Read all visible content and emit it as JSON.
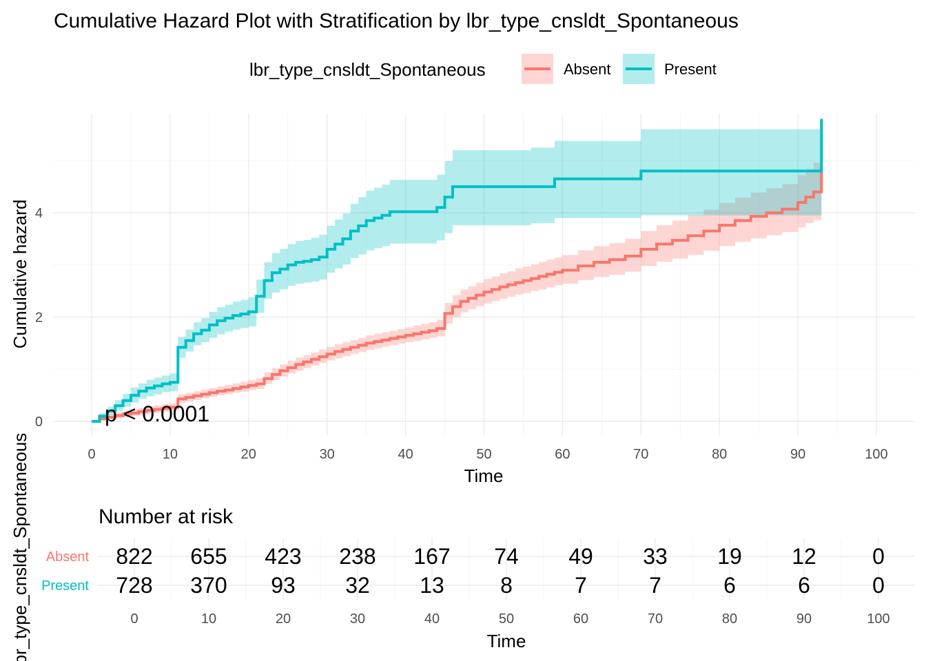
{
  "chart_data": [
    {
      "type": "line",
      "subtype": "step",
      "title": "Cumulative Hazard Plot with Stratification by lbr_type_cnsldt_Spontaneous",
      "xlabel": "Time",
      "ylabel": "Cumulative hazard",
      "xlim": [
        0,
        100
      ],
      "ylim": [
        0,
        5.8
      ],
      "x_ticks": [
        0,
        10,
        20,
        30,
        40,
        50,
        60,
        70,
        80,
        90,
        100
      ],
      "y_ticks": [
        0,
        2,
        4
      ],
      "grid": true,
      "annotation": "p < 0.0001",
      "legend": {
        "title": "lbr_type_cnsldt_Spontaneous",
        "position": "top",
        "entries": [
          "Absent",
          "Present"
        ]
      },
      "series": [
        {
          "name": "Absent",
          "color": "#F8766D",
          "band_color": "#F8766D",
          "x": [
            0,
            1,
            2,
            3,
            4,
            5,
            6,
            7,
            8,
            9,
            10,
            11,
            12,
            13,
            14,
            15,
            16,
            17,
            18,
            19,
            20,
            21,
            22,
            23,
            24,
            25,
            26,
            27,
            28,
            29,
            30,
            31,
            32,
            33,
            34,
            35,
            36,
            37,
            38,
            39,
            40,
            41,
            42,
            43,
            44,
            45,
            46,
            47,
            48,
            49,
            50,
            51,
            52,
            53,
            54,
            55,
            56,
            57,
            58,
            59,
            60,
            62,
            64,
            66,
            68,
            70,
            72,
            74,
            76,
            78,
            80,
            82,
            84,
            86,
            88,
            90,
            91,
            92,
            93
          ],
          "y": [
            0,
            0.05,
            0.08,
            0.11,
            0.14,
            0.16,
            0.19,
            0.21,
            0.23,
            0.25,
            0.27,
            0.43,
            0.46,
            0.49,
            0.52,
            0.55,
            0.58,
            0.6,
            0.63,
            0.66,
            0.69,
            0.72,
            0.82,
            0.9,
            0.97,
            1.03,
            1.09,
            1.14,
            1.19,
            1.24,
            1.29,
            1.34,
            1.38,
            1.42,
            1.46,
            1.5,
            1.53,
            1.56,
            1.59,
            1.62,
            1.65,
            1.68,
            1.71,
            1.74,
            1.78,
            2.07,
            2.2,
            2.3,
            2.36,
            2.42,
            2.48,
            2.53,
            2.58,
            2.62,
            2.66,
            2.7,
            2.74,
            2.78,
            2.82,
            2.86,
            2.9,
            2.98,
            3.05,
            3.1,
            3.17,
            3.3,
            3.4,
            3.47,
            3.56,
            3.65,
            3.76,
            3.85,
            3.93,
            4.0,
            4.07,
            4.2,
            4.3,
            4.4,
            4.8
          ],
          "lower": [
            0,
            0.02,
            0.04,
            0.06,
            0.08,
            0.1,
            0.12,
            0.14,
            0.16,
            0.18,
            0.2,
            0.35,
            0.38,
            0.41,
            0.44,
            0.47,
            0.5,
            0.52,
            0.55,
            0.57,
            0.6,
            0.62,
            0.72,
            0.79,
            0.86,
            0.92,
            0.97,
            1.02,
            1.07,
            1.12,
            1.17,
            1.21,
            1.25,
            1.29,
            1.33,
            1.37,
            1.4,
            1.43,
            1.46,
            1.49,
            1.52,
            1.54,
            1.57,
            1.6,
            1.63,
            1.88,
            2.0,
            2.09,
            2.15,
            2.21,
            2.26,
            2.31,
            2.35,
            2.39,
            2.43,
            2.46,
            2.5,
            2.53,
            2.57,
            2.61,
            2.64,
            2.71,
            2.77,
            2.81,
            2.87,
            2.98,
            3.06,
            3.12,
            3.19,
            3.27,
            3.36,
            3.44,
            3.51,
            3.57,
            3.63,
            3.72,
            3.8,
            3.86,
            4.0
          ],
          "upper": [
            0,
            0.09,
            0.13,
            0.17,
            0.2,
            0.23,
            0.26,
            0.29,
            0.31,
            0.33,
            0.35,
            0.52,
            0.55,
            0.58,
            0.61,
            0.64,
            0.67,
            0.7,
            0.73,
            0.76,
            0.79,
            0.83,
            0.94,
            1.02,
            1.09,
            1.16,
            1.22,
            1.27,
            1.32,
            1.38,
            1.43,
            1.48,
            1.52,
            1.56,
            1.6,
            1.65,
            1.68,
            1.71,
            1.74,
            1.77,
            1.8,
            1.84,
            1.87,
            1.9,
            1.95,
            2.27,
            2.42,
            2.53,
            2.59,
            2.66,
            2.73,
            2.78,
            2.84,
            2.88,
            2.93,
            2.97,
            3.01,
            3.06,
            3.1,
            3.14,
            3.19,
            3.28,
            3.36,
            3.42,
            3.5,
            3.65,
            3.76,
            3.85,
            3.96,
            4.06,
            4.19,
            4.29,
            4.39,
            4.47,
            4.55,
            4.72,
            4.84,
            4.96,
            5.0
          ]
        },
        {
          "name": "Present",
          "color": "#00BFC4",
          "band_color": "#00BFC4",
          "x": [
            0,
            1,
            2,
            3,
            4,
            5,
            6,
            7,
            8,
            9,
            10,
            11,
            12,
            13,
            14,
            15,
            16,
            17,
            18,
            19,
            20,
            21,
            22,
            23,
            24,
            25,
            26,
            27,
            28,
            29,
            30,
            31,
            32,
            33,
            34,
            35,
            36,
            37,
            38,
            40,
            42,
            44,
            45,
            46,
            50,
            52,
            54,
            56,
            59,
            62,
            66,
            70,
            75,
            80,
            85,
            90,
            93
          ],
          "y": [
            0,
            0.1,
            0.2,
            0.3,
            0.4,
            0.5,
            0.58,
            0.64,
            0.68,
            0.72,
            0.75,
            1.42,
            1.55,
            1.68,
            1.75,
            1.85,
            1.93,
            1.98,
            2.03,
            2.06,
            2.1,
            2.4,
            2.7,
            2.85,
            2.92,
            3.0,
            3.05,
            3.07,
            3.1,
            3.15,
            3.3,
            3.4,
            3.5,
            3.65,
            3.75,
            3.85,
            3.9,
            3.95,
            4.02,
            4.02,
            4.02,
            4.1,
            4.3,
            4.5,
            4.5,
            4.5,
            4.5,
            4.5,
            4.65,
            4.65,
            4.65,
            4.8,
            4.8,
            4.8,
            4.8,
            4.8,
            5.8
          ],
          "lower": [
            0,
            0.05,
            0.12,
            0.2,
            0.28,
            0.36,
            0.43,
            0.48,
            0.52,
            0.56,
            0.58,
            1.22,
            1.34,
            1.46,
            1.52,
            1.6,
            1.67,
            1.72,
            1.76,
            1.79,
            1.82,
            2.08,
            2.35,
            2.47,
            2.53,
            2.6,
            2.64,
            2.66,
            2.68,
            2.72,
            2.85,
            2.93,
            3.01,
            3.13,
            3.2,
            3.28,
            3.32,
            3.36,
            3.41,
            3.41,
            3.41,
            3.47,
            3.61,
            3.76,
            3.76,
            3.76,
            3.76,
            3.8,
            3.9,
            3.9,
            3.9,
            3.95,
            3.95,
            3.95,
            3.95,
            3.95,
            4.0
          ],
          "upper": [
            0,
            0.16,
            0.28,
            0.41,
            0.53,
            0.65,
            0.73,
            0.8,
            0.84,
            0.88,
            0.92,
            1.62,
            1.76,
            1.9,
            1.98,
            2.1,
            2.19,
            2.24,
            2.3,
            2.33,
            2.38,
            2.72,
            3.05,
            3.23,
            3.31,
            3.4,
            3.46,
            3.48,
            3.52,
            3.58,
            3.75,
            3.87,
            3.99,
            4.17,
            4.3,
            4.42,
            4.48,
            4.54,
            4.63,
            4.63,
            4.63,
            4.73,
            4.99,
            5.2,
            5.2,
            5.2,
            5.2,
            5.25,
            5.38,
            5.38,
            5.38,
            5.6,
            5.6,
            5.6,
            5.6,
            5.6,
            5.8
          ]
        }
      ]
    },
    {
      "type": "table",
      "title": "Number at risk",
      "xlabel": "Time",
      "ylabel": "lbr_type_cnsldt_Spontaneous",
      "time_ticks": [
        0,
        10,
        20,
        30,
        40,
        50,
        60,
        70,
        80,
        90,
        100
      ],
      "rows": [
        {
          "name": "Absent",
          "color": "#F8766D",
          "values": [
            822,
            655,
            423,
            238,
            167,
            74,
            49,
            33,
            19,
            12,
            0
          ]
        },
        {
          "name": "Present",
          "color": "#00BFC4",
          "values": [
            728,
            370,
            93,
            32,
            13,
            8,
            7,
            7,
            6,
            6,
            0
          ]
        }
      ]
    }
  ]
}
